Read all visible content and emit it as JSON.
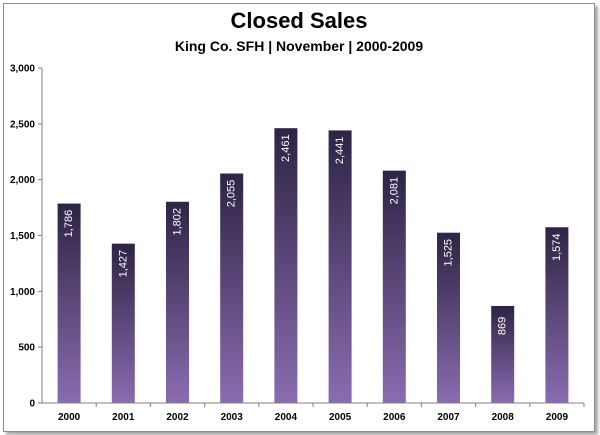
{
  "chart_data": {
    "type": "bar",
    "title": "Closed Sales",
    "subtitle": "King Co. SFH | November | 2000-2009",
    "xlabel": "",
    "ylabel": "",
    "categories": [
      "2000",
      "2001",
      "2002",
      "2003",
      "2004",
      "2005",
      "2006",
      "2007",
      "2008",
      "2009"
    ],
    "values": [
      1786,
      1427,
      1802,
      2055,
      2461,
      2441,
      2081,
      1525,
      869,
      1574
    ],
    "data_labels": [
      "1,786",
      "1,427",
      "1,802",
      "2,055",
      "2,461",
      "2,441",
      "2,081",
      "1,525",
      "869",
      "1,574"
    ],
    "ylim": [
      0,
      3000
    ],
    "yticks": [
      0,
      500,
      1000,
      1500,
      2000,
      2500,
      3000
    ],
    "ytick_labels": [
      "0",
      "500",
      "1,000",
      "1,500",
      "2,000",
      "2,500",
      "3,000"
    ],
    "grid": false,
    "legend": "none",
    "colors": {
      "bar_top": "#2e2444",
      "bar_bottom": "#8a6cb0",
      "axis": "#808080",
      "label": "#ffffff"
    }
  }
}
